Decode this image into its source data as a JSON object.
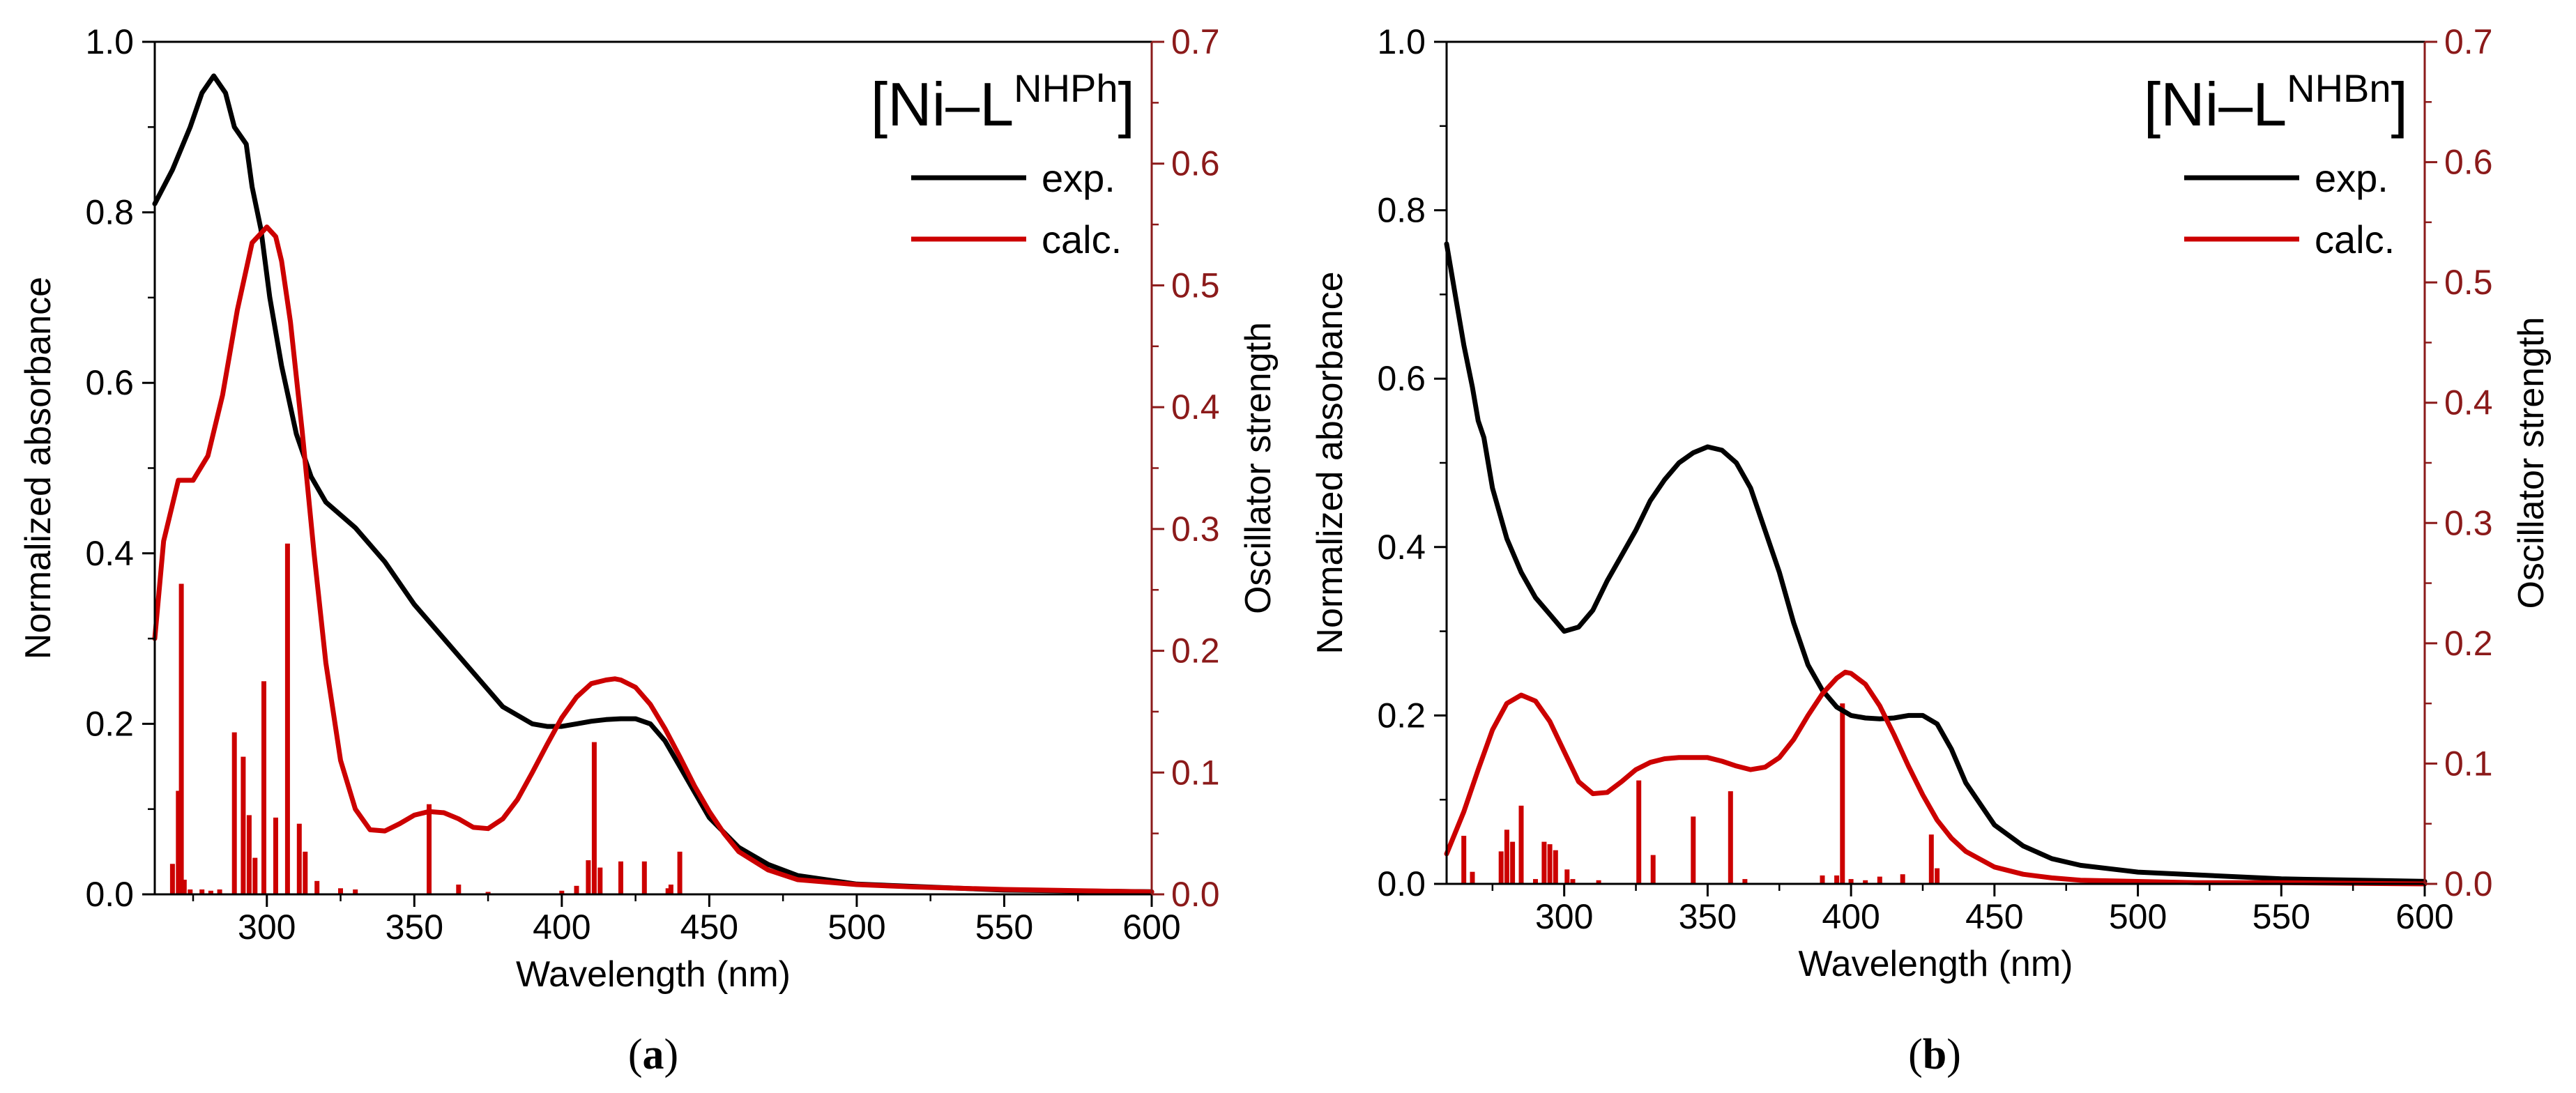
{
  "colors": {
    "exp": "#000000",
    "calc": "#cc0000",
    "axis_right": "#8b1a1a",
    "background": "#ffffff"
  },
  "chart_data": [
    {
      "type": "line",
      "panel_label": "a",
      "title_main": "[Ni–L",
      "title_sup": "NHPh",
      "title_close": "]",
      "xlabel": "Wavelength (nm)",
      "ylabel_left": "Normalized absorbance",
      "ylabel_right": "Oscillator strength",
      "xlim": [
        262,
        600
      ],
      "ylim_left": [
        0,
        1.0
      ],
      "ylim_right": [
        0,
        0.7
      ],
      "xticks": [
        300,
        350,
        400,
        450,
        500,
        550,
        600
      ],
      "xtick_labels": [
        "300",
        "350",
        "400",
        "450",
        "500",
        "550",
        "600"
      ],
      "yticks_left": [
        0.0,
        0.2,
        0.4,
        0.6,
        0.8,
        1.0
      ],
      "ytick_labels_left": [
        "0.0",
        "0.2",
        "0.4",
        "0.6",
        "0.8",
        "1.0"
      ],
      "yticks_right": [
        0.0,
        0.1,
        0.2,
        0.3,
        0.4,
        0.5,
        0.6,
        0.7
      ],
      "ytick_labels_right": [
        "0.0",
        "0.1",
        "0.2",
        "0.3",
        "0.4",
        "0.5",
        "0.6",
        "0.7"
      ],
      "legend": [
        {
          "label": "exp.",
          "series": "exp"
        },
        {
          "label": "calc.",
          "series": "calc"
        }
      ],
      "series": [
        {
          "name": "exp.",
          "key": "exp",
          "axis": "left",
          "x": [
            262,
            268,
            274,
            278,
            282,
            286,
            289,
            291,
            293,
            295,
            298,
            301,
            305,
            310,
            315,
            320,
            330,
            340,
            350,
            360,
            370,
            380,
            390,
            395,
            400,
            405,
            410,
            415,
            420,
            425,
            430,
            435,
            440,
            445,
            450,
            460,
            470,
            480,
            500,
            550,
            600
          ],
          "y": [
            0.81,
            0.85,
            0.9,
            0.94,
            0.96,
            0.94,
            0.9,
            0.89,
            0.88,
            0.83,
            0.78,
            0.7,
            0.62,
            0.54,
            0.49,
            0.46,
            0.43,
            0.39,
            0.34,
            0.3,
            0.26,
            0.22,
            0.2,
            0.197,
            0.197,
            0.2,
            0.203,
            0.205,
            0.206,
            0.206,
            0.2,
            0.18,
            0.15,
            0.12,
            0.09,
            0.055,
            0.035,
            0.022,
            0.012,
            0.005,
            0.003
          ]
        },
        {
          "name": "calc.",
          "key": "calc",
          "axis": "right",
          "x": [
            262,
            265,
            270,
            275,
            280,
            285,
            290,
            295,
            300,
            303,
            305,
            308,
            312,
            316,
            320,
            325,
            330,
            335,
            340,
            345,
            350,
            355,
            360,
            365,
            370,
            375,
            380,
            385,
            390,
            395,
            400,
            405,
            410,
            415,
            418,
            420,
            425,
            430,
            435,
            440,
            445,
            450,
            455,
            460,
            470,
            480,
            500,
            520,
            550,
            600
          ],
          "y": [
            0.21,
            0.29,
            0.34,
            0.34,
            0.36,
            0.41,
            0.48,
            0.535,
            0.548,
            0.54,
            0.52,
            0.47,
            0.38,
            0.28,
            0.19,
            0.11,
            0.07,
            0.053,
            0.052,
            0.058,
            0.065,
            0.068,
            0.067,
            0.062,
            0.055,
            0.054,
            0.062,
            0.078,
            0.1,
            0.123,
            0.145,
            0.162,
            0.173,
            0.176,
            0.177,
            0.176,
            0.17,
            0.156,
            0.136,
            0.113,
            0.089,
            0.068,
            0.05,
            0.035,
            0.02,
            0.012,
            0.008,
            0.006,
            0.004,
            0.002
          ]
        }
      ],
      "sticks": {
        "axis": "right",
        "x": [
          268,
          270,
          271,
          272,
          274,
          278,
          281,
          284,
          289,
          292,
          294,
          296,
          299,
          303,
          307,
          311,
          313,
          317,
          325,
          330,
          355,
          365,
          375,
          400,
          405,
          409,
          411,
          413,
          420,
          428,
          436,
          437,
          440
        ],
        "f": [
          0.025,
          0.085,
          0.255,
          0.012,
          0.004,
          0.004,
          0.003,
          0.004,
          0.133,
          0.113,
          0.065,
          0.03,
          0.175,
          0.063,
          0.288,
          0.058,
          0.035,
          0.011,
          0.005,
          0.004,
          0.074,
          0.008,
          0.002,
          0.003,
          0.007,
          0.028,
          0.125,
          0.022,
          0.027,
          0.027,
          0.005,
          0.008,
          0.035
        ]
      }
    },
    {
      "type": "line",
      "panel_label": "b",
      "title_main": "[Ni–L",
      "title_sup": "NHBn",
      "title_close": "]",
      "xlabel": "Wavelength (nm)",
      "ylabel_left": "Normalized absorbance",
      "ylabel_right": "Oscillator strength",
      "xlim": [
        259,
        600
      ],
      "ylim_left": [
        0,
        1.0
      ],
      "ylim_right": [
        0,
        0.7
      ],
      "xticks": [
        300,
        350,
        400,
        450,
        500,
        550,
        600
      ],
      "xtick_labels": [
        "300",
        "350",
        "400",
        "450",
        "500",
        "550",
        "600"
      ],
      "yticks_left": [
        0.0,
        0.2,
        0.4,
        0.6,
        0.8,
        1.0
      ],
      "ytick_labels_left": [
        "0.0",
        "0.2",
        "0.4",
        "0.6",
        "0.8",
        "1.0"
      ],
      "yticks_right": [
        0.0,
        0.1,
        0.2,
        0.3,
        0.4,
        0.5,
        0.6,
        0.7
      ],
      "ytick_labels_right": [
        "0.0",
        "0.1",
        "0.2",
        "0.3",
        "0.4",
        "0.5",
        "0.6",
        "0.7"
      ],
      "legend": [
        {
          "label": "exp.",
          "series": "exp"
        },
        {
          "label": "calc.",
          "series": "calc"
        }
      ],
      "series": [
        {
          "name": "exp.",
          "key": "exp",
          "axis": "left",
          "x": [
            259,
            262,
            265,
            268,
            270,
            272,
            275,
            280,
            285,
            290,
            295,
            300,
            305,
            310,
            315,
            320,
            325,
            330,
            335,
            340,
            345,
            350,
            355,
            360,
            365,
            370,
            375,
            380,
            385,
            390,
            395,
            400,
            405,
            410,
            415,
            420,
            425,
            430,
            435,
            440,
            450,
            460,
            470,
            480,
            500,
            550,
            600
          ],
          "y": [
            0.76,
            0.7,
            0.64,
            0.59,
            0.55,
            0.53,
            0.47,
            0.41,
            0.37,
            0.34,
            0.32,
            0.3,
            0.305,
            0.325,
            0.36,
            0.39,
            0.42,
            0.455,
            0.48,
            0.5,
            0.512,
            0.519,
            0.515,
            0.5,
            0.47,
            0.42,
            0.37,
            0.31,
            0.26,
            0.23,
            0.21,
            0.2,
            0.197,
            0.196,
            0.197,
            0.2,
            0.2,
            0.19,
            0.16,
            0.12,
            0.07,
            0.045,
            0.03,
            0.022,
            0.014,
            0.006,
            0.003
          ]
        },
        {
          "name": "calc.",
          "key": "calc",
          "axis": "right",
          "x": [
            259,
            265,
            270,
            275,
            280,
            285,
            290,
            295,
            300,
            305,
            310,
            315,
            320,
            325,
            330,
            335,
            340,
            345,
            350,
            355,
            360,
            365,
            370,
            375,
            380,
            385,
            390,
            395,
            398,
            400,
            405,
            410,
            415,
            420,
            425,
            430,
            435,
            440,
            450,
            460,
            470,
            480,
            500,
            520,
            550,
            600
          ],
          "y": [
            0.025,
            0.06,
            0.095,
            0.128,
            0.15,
            0.157,
            0.152,
            0.135,
            0.11,
            0.085,
            0.075,
            0.076,
            0.085,
            0.095,
            0.101,
            0.104,
            0.105,
            0.105,
            0.105,
            0.102,
            0.098,
            0.095,
            0.097,
            0.105,
            0.12,
            0.14,
            0.158,
            0.171,
            0.176,
            0.175,
            0.166,
            0.148,
            0.124,
            0.098,
            0.074,
            0.053,
            0.038,
            0.027,
            0.014,
            0.008,
            0.005,
            0.003,
            0.002,
            0.001,
            0.001,
            0.0
          ]
        }
      ],
      "sticks": {
        "axis": "right",
        "x": [
          265,
          268,
          278,
          280,
          282,
          285,
          290,
          293,
          295,
          297,
          301,
          303,
          312,
          326,
          331,
          345,
          358,
          363,
          390,
          395,
          397,
          400,
          405,
          410,
          418,
          428,
          430
        ],
        "f": [
          0.04,
          0.01,
          0.027,
          0.045,
          0.035,
          0.065,
          0.004,
          0.035,
          0.033,
          0.028,
          0.012,
          0.004,
          0.003,
          0.086,
          0.024,
          0.056,
          0.077,
          0.004,
          0.007,
          0.007,
          0.15,
          0.004,
          0.003,
          0.006,
          0.008,
          0.041,
          0.013
        ]
      }
    }
  ]
}
